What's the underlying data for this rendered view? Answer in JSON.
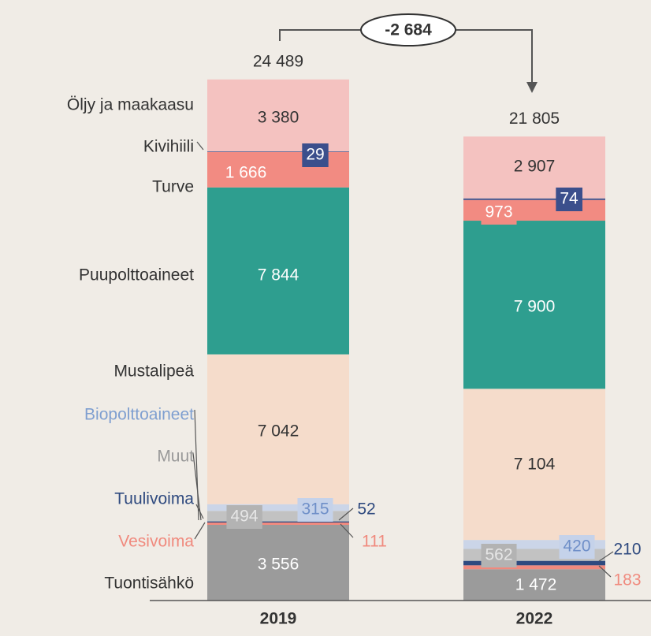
{
  "chart_data": {
    "type": "stacked_bar",
    "categories": [
      "2019",
      "2022"
    ],
    "totals": [
      24489,
      21805
    ],
    "total_labels": [
      "24 489",
      "21 805"
    ],
    "annotation": "-2 684",
    "series": [
      {
        "name": "Tuontisähkö",
        "color": "#9b9b9b",
        "values": [
          3556,
          1472
        ],
        "value_labels": [
          "3 556",
          "1 472"
        ]
      },
      {
        "name": "Vesivoima",
        "color": "#f08a7e",
        "values": [
          111,
          183
        ],
        "value_labels": [
          "111",
          "183"
        ]
      },
      {
        "name": "Tuulivoima",
        "color": "#2f4a7f",
        "values": [
          52,
          210
        ],
        "value_labels": [
          "52",
          "210"
        ]
      },
      {
        "name": "Muut",
        "color": "#c2c2c2",
        "values": [
          494,
          562
        ],
        "value_labels": [
          "494",
          "562"
        ]
      },
      {
        "name": "Biopolttoaineet",
        "color": "#cbd5e8",
        "values": [
          315,
          420
        ],
        "value_labels": [
          "315",
          "420"
        ]
      },
      {
        "name": "Mustalipeä",
        "color": "#f5dccb",
        "values": [
          7042,
          7104
        ],
        "value_labels": [
          "7 042",
          "7 104"
        ]
      },
      {
        "name": "Puupolttoaineet",
        "color": "#2e9e8f",
        "values": [
          7844,
          7900
        ],
        "value_labels": [
          "7 844",
          "7 900"
        ]
      },
      {
        "name": "Turve",
        "color": "#f28b82",
        "values": [
          1666,
          973
        ],
        "value_labels": [
          "1 666",
          "973"
        ]
      },
      {
        "name": "Kivihiili",
        "color": "#3b4f8c",
        "values": [
          29,
          74
        ],
        "value_labels": [
          "29",
          "74"
        ]
      },
      {
        "name": "Öljy ja maakaasu",
        "color": "#f4c2c0",
        "values": [
          3380,
          2907
        ],
        "value_labels": [
          "3 380",
          "2 907"
        ]
      }
    ]
  }
}
